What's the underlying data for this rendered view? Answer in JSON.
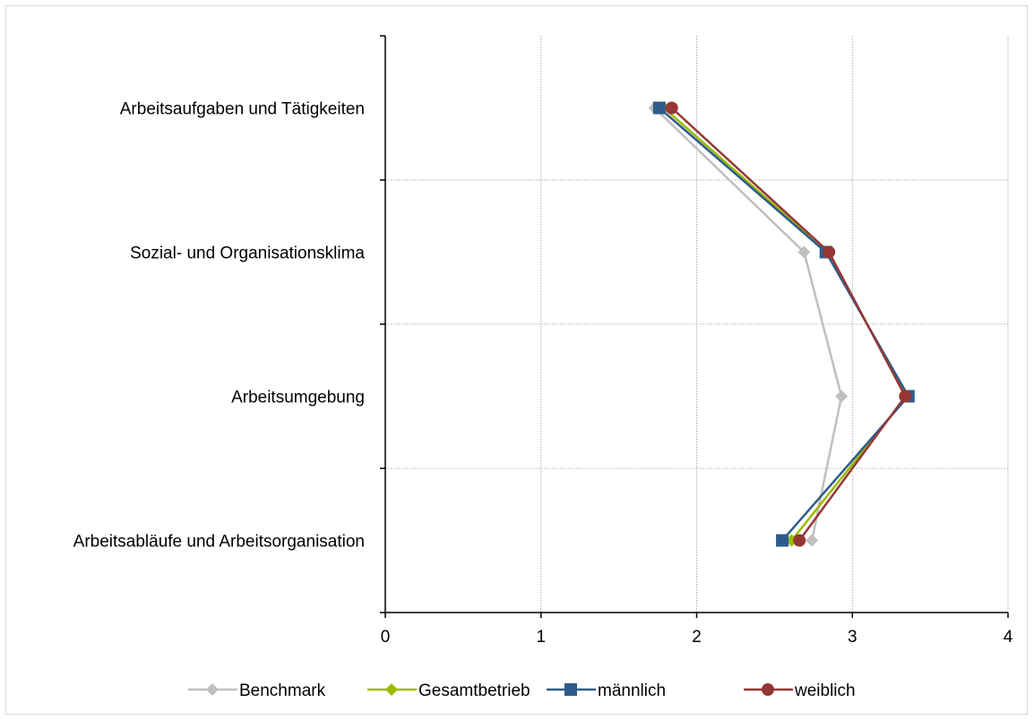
{
  "chart_data": {
    "type": "line",
    "orientation": "horizontal",
    "categories": [
      "Arbeitsaufgaben und Tätigkeiten",
      "Sozial- und Organisationsklima",
      "Arbeitsumgebung",
      "Arbeitsabläufe und Arbeitsorganisation"
    ],
    "x_ticks": [
      "0",
      "1",
      "2",
      "3",
      "4"
    ],
    "xlim": [
      0,
      4
    ],
    "grid": true,
    "legend_position": "bottom",
    "series": [
      {
        "name": "Benchmark",
        "color": "#bfbfbf",
        "marker": "diamond",
        "values": [
          1.73,
          2.69,
          2.93,
          2.74
        ]
      },
      {
        "name": "Gesamtbetrieb",
        "color": "#9bbb00",
        "marker": "diamond",
        "values": [
          1.79,
          2.84,
          3.35,
          2.61
        ]
      },
      {
        "name": "männlich",
        "color": "#2e5c8a",
        "marker": "square",
        "values": [
          1.76,
          2.83,
          3.36,
          2.55
        ]
      },
      {
        "name": "weiblich",
        "color": "#953735",
        "marker": "circle",
        "values": [
          1.84,
          2.85,
          3.34,
          2.66
        ]
      }
    ]
  }
}
